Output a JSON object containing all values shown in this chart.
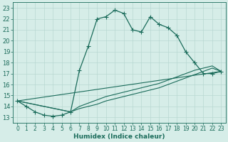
{
  "xlabel": "Humidex (Indice chaleur)",
  "bg_color": "#d6ede8",
  "line_color": "#1a6b5a",
  "grid_color": "#b8d8d2",
  "xlim": [
    -0.5,
    23.5
  ],
  "ylim": [
    12.5,
    23.5
  ],
  "xticks": [
    0,
    1,
    2,
    3,
    4,
    5,
    6,
    7,
    8,
    9,
    10,
    11,
    12,
    13,
    14,
    15,
    16,
    17,
    18,
    19,
    20,
    21,
    22,
    23
  ],
  "yticks": [
    13,
    14,
    15,
    16,
    17,
    18,
    19,
    20,
    21,
    22,
    23
  ],
  "line1_x": [
    0,
    1,
    2,
    3,
    4,
    5,
    6,
    7,
    8,
    9,
    10,
    11,
    12,
    13,
    14,
    15,
    16,
    17,
    18,
    19,
    20,
    21,
    22,
    23
  ],
  "line1_y": [
    14.5,
    14.0,
    13.5,
    13.2,
    13.1,
    13.2,
    13.5,
    17.3,
    19.5,
    22.0,
    22.2,
    22.8,
    22.5,
    21.0,
    20.8,
    22.2,
    21.5,
    21.2,
    20.5,
    19.0,
    18.0,
    17.0,
    17.0,
    17.2
  ],
  "line2_x": [
    0,
    6,
    7,
    8,
    9,
    10,
    11,
    12,
    13,
    14,
    15,
    16,
    17,
    18,
    19,
    20,
    21,
    22,
    23
  ],
  "line2_y": [
    14.5,
    13.5,
    14.0,
    14.3,
    14.6,
    14.9,
    15.1,
    15.3,
    15.5,
    15.7,
    15.9,
    16.1,
    16.4,
    16.7,
    17.0,
    17.3,
    17.5,
    17.7,
    17.2
  ],
  "line3_x": [
    0,
    6,
    7,
    8,
    9,
    10,
    11,
    12,
    13,
    14,
    15,
    16,
    17,
    18,
    19,
    20,
    21,
    22,
    23
  ],
  "line3_y": [
    14.5,
    13.5,
    13.8,
    14.0,
    14.2,
    14.5,
    14.7,
    14.9,
    15.1,
    15.3,
    15.5,
    15.7,
    16.0,
    16.3,
    16.6,
    16.9,
    17.2,
    17.5,
    17.2
  ],
  "line4_x": [
    0,
    23
  ],
  "line4_y": [
    14.5,
    17.2
  ],
  "markersize": 3.0,
  "xlabel_fontsize": 6.5,
  "tick_fontsize": 5.5
}
